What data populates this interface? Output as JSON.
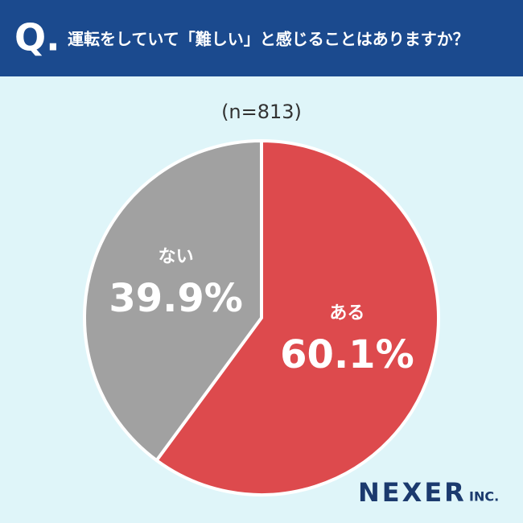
{
  "chart_data": {
    "type": "pie",
    "badge": "Q.",
    "title": "運転をしていて「難しい」と感じることはありますか？",
    "subtitle": "(n=813)",
    "categories": [
      "ある",
      "ない"
    ],
    "values": [
      60.1,
      39.9
    ],
    "value_labels": [
      "60.1%",
      "39.9%"
    ],
    "colors": [
      "#dd4a4d",
      "#a1a1a1"
    ],
    "brand": "NEXER",
    "brand_suffix": "INC."
  }
}
